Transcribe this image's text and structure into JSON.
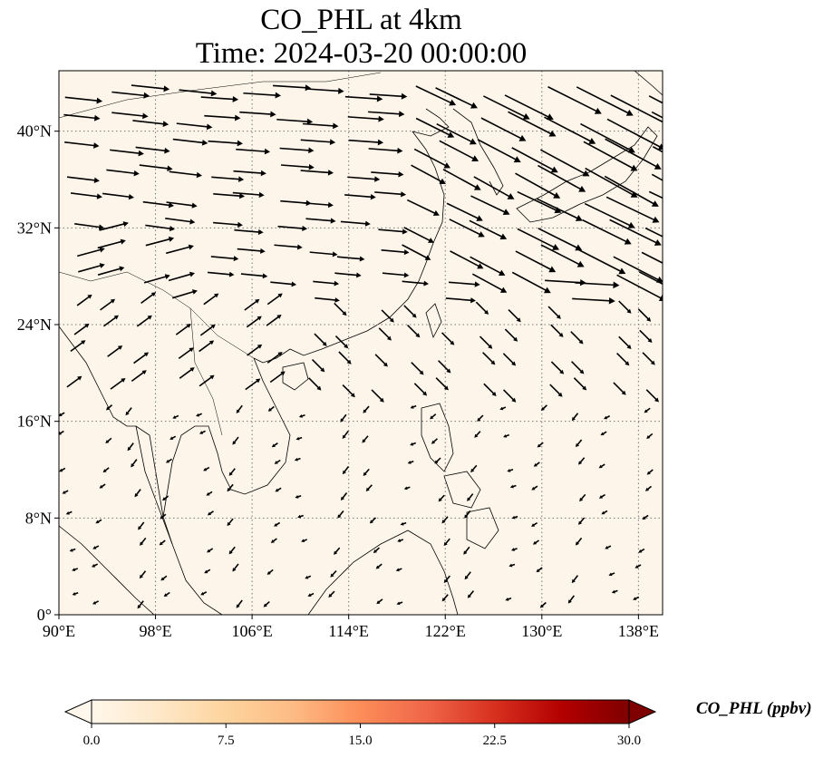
{
  "title": {
    "line1": "CO_PHL at 4km",
    "line2": "Time: 2024-03-20 00:00:00"
  },
  "map": {
    "projection": "PlateCarree",
    "extent": {
      "lon_min": 90,
      "lon_max": 140,
      "lat_min": 0,
      "lat_max": 45
    },
    "background_color": "#fdf5e9",
    "gridlines": "dotted",
    "lon_ticks": [
      {
        "value": 90,
        "label": "90°E"
      },
      {
        "value": 98,
        "label": "98°E"
      },
      {
        "value": 106,
        "label": "106°E"
      },
      {
        "value": 114,
        "label": "114°E"
      },
      {
        "value": 122,
        "label": "122°E"
      },
      {
        "value": 130,
        "label": "130°E"
      },
      {
        "value": 138,
        "label": "138°E"
      }
    ],
    "lat_ticks": [
      {
        "value": 0,
        "label": "0°"
      },
      {
        "value": 8,
        "label": "8°N"
      },
      {
        "value": 16,
        "label": "16°N"
      },
      {
        "value": 24,
        "label": "24°N"
      },
      {
        "value": 32,
        "label": "32°N"
      },
      {
        "value": 40,
        "label": "40°N"
      }
    ]
  },
  "colorbar": {
    "label": "CO_PHL (ppbv)",
    "colormap": "OrRd",
    "colors": [
      "#fff7ec",
      "#fee8c8",
      "#fdd49e",
      "#fdbb84",
      "#fc8d59",
      "#ef6548",
      "#d7301f",
      "#b30000",
      "#7f0000"
    ],
    "extend": "both",
    "range": [
      0,
      30
    ],
    "tick_labels": [
      "0.0",
      "7.5",
      "15.0",
      "22.5",
      "30.0"
    ]
  }
}
